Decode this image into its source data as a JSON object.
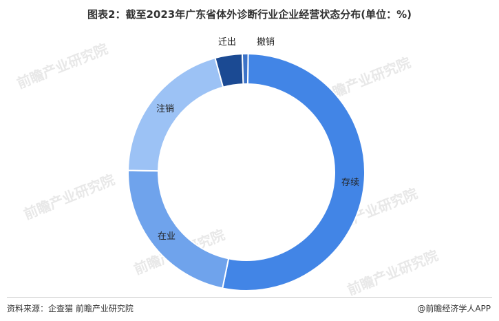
{
  "chart_data": {
    "type": "pie",
    "title": "图表2：截至2023年广东省体外诊断行业企业经营状态分布(单位：%)",
    "categories": [
      "存续",
      "在业",
      "注销",
      "撤销",
      "迁出"
    ],
    "values": [
      53.0,
      22.0,
      20.5,
      3.7,
      0.8
    ],
    "colors": [
      "#4285e6",
      "#6fa3ec",
      "#9cc2f5",
      "#1b4a93",
      "#3c73c8"
    ],
    "donut": true,
    "legend": "none"
  },
  "footer": {
    "source": "资料来源：企查猫 前瞻产业研究院",
    "credit": "@前瞻经济学人APP"
  },
  "watermark": "前瞻产业研究院"
}
